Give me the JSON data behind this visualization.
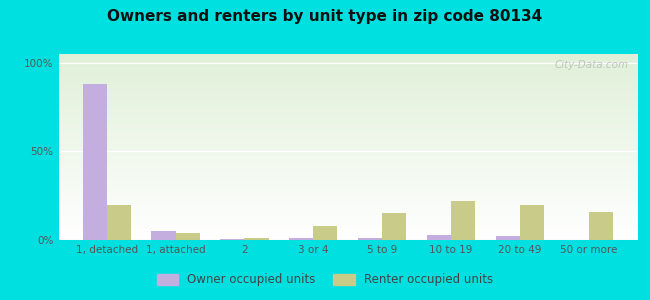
{
  "title": "Owners and renters by unit type in zip code 80134",
  "categories": [
    "1, detached",
    "1, attached",
    "2",
    "3 or 4",
    "5 to 9",
    "10 to 19",
    "20 to 49",
    "50 or more"
  ],
  "owner_values": [
    88,
    5,
    0.5,
    1,
    1,
    3,
    2,
    0
  ],
  "renter_values": [
    20,
    4,
    1,
    8,
    15,
    22,
    20,
    16
  ],
  "owner_color": "#c4aee0",
  "renter_color": "#c8cc88",
  "background_color": "#00e0e0",
  "ylabel_ticks": [
    "0%",
    "50%",
    "100%"
  ],
  "ytick_vals": [
    0,
    50,
    100
  ],
  "ylim": [
    0,
    105
  ],
  "bar_width": 0.35,
  "title_fontsize": 11,
  "tick_fontsize": 7.5,
  "legend_fontsize": 8.5,
  "watermark": "City-Data.com"
}
